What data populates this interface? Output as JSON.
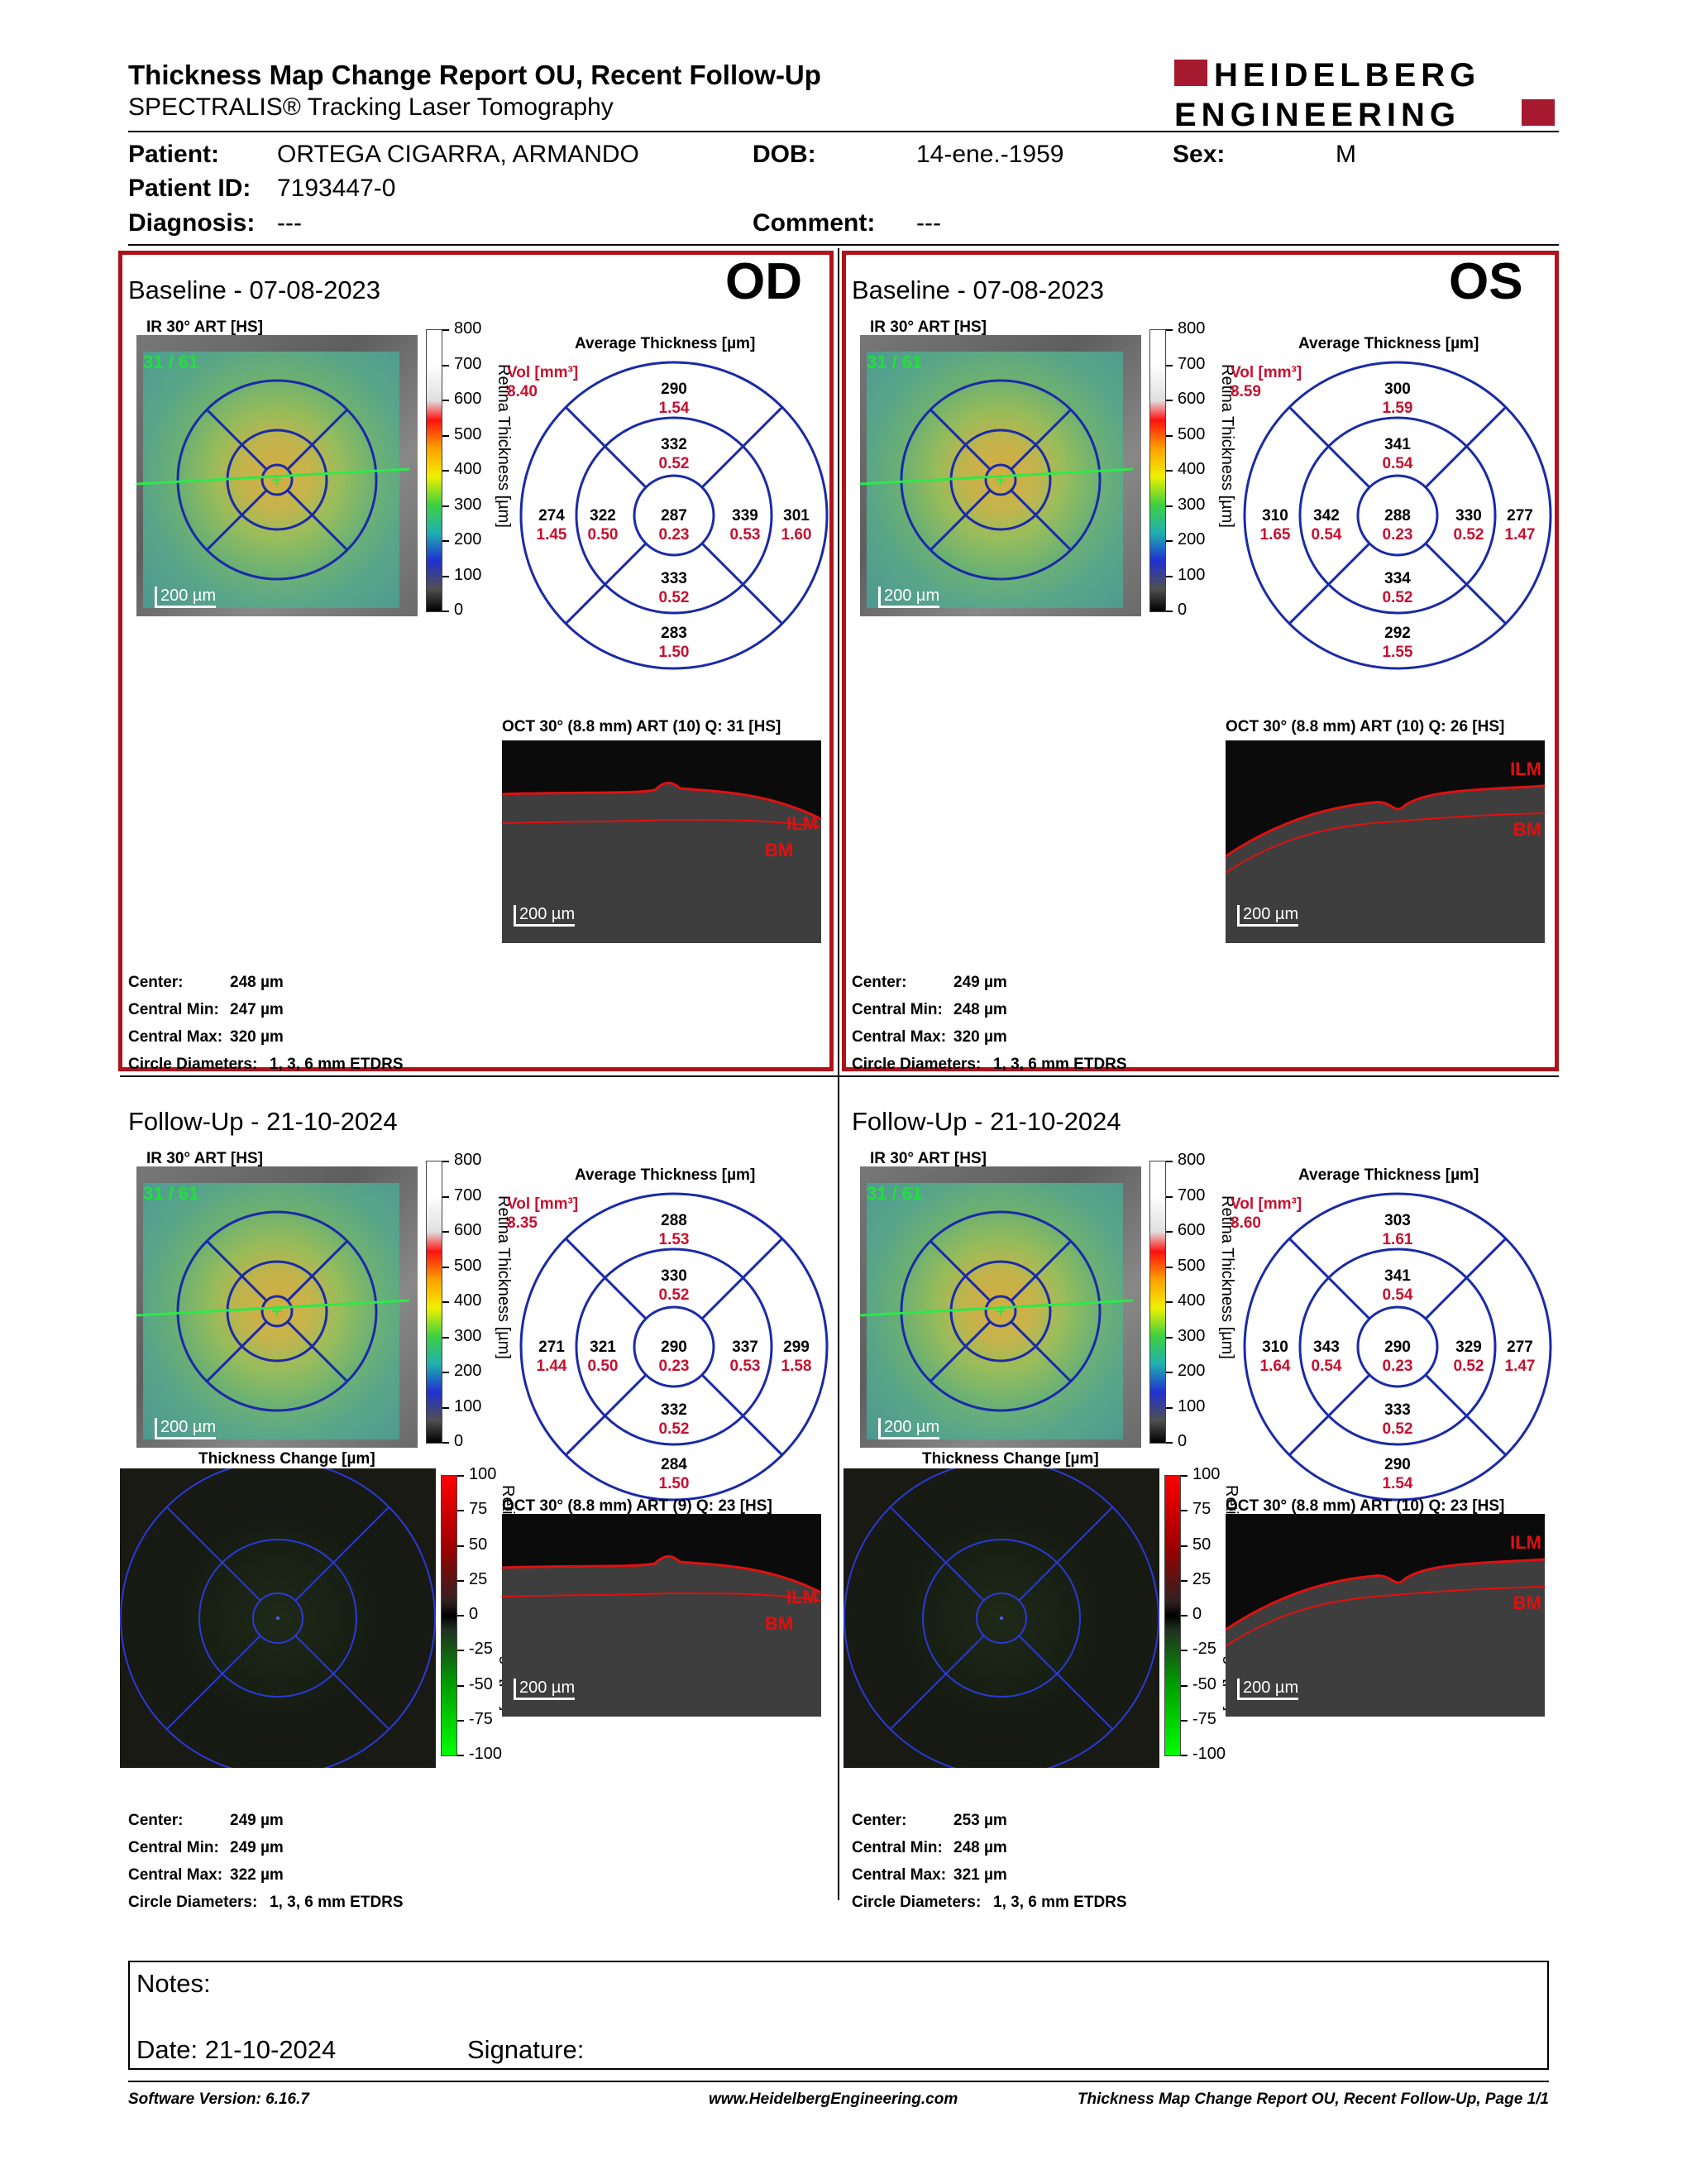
{
  "header": {
    "title": "Thickness Map Change Report OU, Recent Follow-Up",
    "subtitle": "SPECTRALIS® Tracking Laser Tomography",
    "logo_line1": "HEIDELBERG",
    "logo_line2": "ENGINEERING",
    "brand_color": "#a6192e"
  },
  "patient": {
    "patient_label": "Patient:",
    "patient_name": "ORTEGA CIGARRA, ARMANDO",
    "dob_label": "DOB:",
    "dob": "14-ene.-1959",
    "sex_label": "Sex:",
    "sex": "M",
    "id_label": "Patient ID:",
    "id": "7193447-0",
    "diagnosis_label": "Diagnosis:",
    "diagnosis": "---",
    "comment_label": "Comment:",
    "comment": "---"
  },
  "panels": {
    "od_base": {
      "title": "Baseline - 07-08-2023",
      "eye": "OD",
      "ir_label": "IR 30° ART [HS]",
      "ir_overlay": "31 / 61",
      "scale_bar": "200 µm",
      "avg_title": "Average Thickness [µm]",
      "vol_label": "Vol [mm³]",
      "vol": "8.40",
      "sectors": {
        "outer_sup": [
          "290",
          "1.54"
        ],
        "inner_sup": [
          "332",
          "0.52"
        ],
        "outer_temp": [
          "274",
          "1.45"
        ],
        "inner_temp": [
          "322",
          "0.50"
        ],
        "center": [
          "287",
          "0.23"
        ],
        "inner_nas": [
          "339",
          "0.53"
        ],
        "outer_nas": [
          "301",
          "1.60"
        ],
        "inner_inf": [
          "333",
          "0.52"
        ],
        "outer_inf": [
          "283",
          "1.50"
        ]
      },
      "oct_label": "OCT 30° (8.8 mm) ART (10) Q: 31 [HS]",
      "oct_ilm": "ILM",
      "oct_bm": "BM",
      "oct_scale": "200 µm",
      "stats": [
        [
          "Center:",
          "248 µm"
        ],
        [
          "Central Min:",
          "247 µm"
        ],
        [
          "Central Max:",
          "320 µm"
        ],
        [
          "Circle Diameters:",
          "1, 3, 6 mm ETDRS"
        ]
      ]
    },
    "os_base": {
      "title": "Baseline - 07-08-2023",
      "eye": "OS",
      "ir_label": "IR 30° ART [HS]",
      "ir_overlay": "31 / 61",
      "scale_bar": "200 µm",
      "avg_title": "Average Thickness [µm]",
      "vol_label": "Vol [mm³]",
      "vol": "8.59",
      "sectors": {
        "outer_sup": [
          "300",
          "1.59"
        ],
        "inner_sup": [
          "341",
          "0.54"
        ],
        "outer_temp": [
          "310",
          "1.65"
        ],
        "inner_temp": [
          "342",
          "0.54"
        ],
        "center": [
          "288",
          "0.23"
        ],
        "inner_nas": [
          "330",
          "0.52"
        ],
        "outer_nas": [
          "277",
          "1.47"
        ],
        "inner_inf": [
          "334",
          "0.52"
        ],
        "outer_inf": [
          "292",
          "1.55"
        ]
      },
      "oct_label": "OCT 30° (8.8 mm) ART (10) Q: 26 [HS]",
      "oct_ilm": "ILM",
      "oct_bm": "BM",
      "oct_scale": "200 µm",
      "stats": [
        [
          "Center:",
          "249 µm"
        ],
        [
          "Central Min:",
          "248 µm"
        ],
        [
          "Central Max:",
          "320 µm"
        ],
        [
          "Circle Diameters:",
          "1, 3, 6 mm ETDRS"
        ]
      ]
    },
    "od_follow": {
      "title": "Follow-Up - 21-10-2024",
      "ir_label": "IR 30° ART [HS]",
      "ir_overlay": "31 / 61",
      "scale_bar": "200 µm",
      "avg_title": "Average Thickness [µm]",
      "vol_label": "Vol [mm³]",
      "vol": "8.35",
      "sectors": {
        "outer_sup": [
          "288",
          "1.53"
        ],
        "inner_sup": [
          "330",
          "0.52"
        ],
        "outer_temp": [
          "271",
          "1.44"
        ],
        "inner_temp": [
          "321",
          "0.50"
        ],
        "center": [
          "290",
          "0.23"
        ],
        "inner_nas": [
          "337",
          "0.53"
        ],
        "outer_nas": [
          "299",
          "1.58"
        ],
        "inner_inf": [
          "332",
          "0.52"
        ],
        "outer_inf": [
          "284",
          "1.50"
        ]
      },
      "change_title": "Thickness Change [µm]",
      "oct_label": "OCT 30° (8.8 mm) ART (9) Q: 23 [HS]",
      "oct_ilm": "ILM",
      "oct_bm": "BM",
      "oct_scale": "200 µm",
      "stats": [
        [
          "Center:",
          "249 µm"
        ],
        [
          "Central Min:",
          "249 µm"
        ],
        [
          "Central Max:",
          "322 µm"
        ],
        [
          "Circle Diameters:",
          "1, 3, 6 mm ETDRS"
        ]
      ]
    },
    "os_follow": {
      "title": "Follow-Up - 21-10-2024",
      "ir_label": "IR 30° ART [HS]",
      "ir_overlay": "31 / 61",
      "scale_bar": "200 µm",
      "avg_title": "Average Thickness [µm]",
      "vol_label": "Vol [mm³]",
      "vol": "8.60",
      "sectors": {
        "outer_sup": [
          "303",
          "1.61"
        ],
        "inner_sup": [
          "341",
          "0.54"
        ],
        "outer_temp": [
          "310",
          "1.64"
        ],
        "inner_temp": [
          "343",
          "0.54"
        ],
        "center": [
          "290",
          "0.23"
        ],
        "inner_nas": [
          "329",
          "0.52"
        ],
        "outer_nas": [
          "277",
          "1.47"
        ],
        "inner_inf": [
          "333",
          "0.52"
        ],
        "outer_inf": [
          "290",
          "1.54"
        ]
      },
      "change_title": "Thickness Change [µm]",
      "oct_label": "OCT 30° (8.8 mm) ART (10) Q: 23 [HS]",
      "oct_ilm": "ILM",
      "oct_bm": "BM",
      "oct_scale": "200 µm",
      "stats": [
        [
          "Center:",
          "253 µm"
        ],
        [
          "Central Min:",
          "248 µm"
        ],
        [
          "Central Max:",
          "321 µm"
        ],
        [
          "Circle Diameters:",
          "1, 3, 6 mm ETDRS"
        ]
      ]
    }
  },
  "thickness_scale": {
    "label": "Retina Thickness [µm]",
    "ticks": [
      "800",
      "700",
      "600",
      "500",
      "400",
      "300",
      "200",
      "100",
      "0"
    ]
  },
  "change_scale": {
    "label": "Retina Thickness Change [µm]",
    "ticks": [
      "100",
      "75",
      "50",
      "25",
      "0",
      "-25",
      "-50",
      "-75",
      "-100"
    ]
  },
  "notes": {
    "notes_label": "Notes:",
    "date_label": "Date: 21-10-2024",
    "signature_label": "Signature:"
  },
  "footer": {
    "software": "Software Version: 6.16.7",
    "website": "www.HeidelbergEngineering.com",
    "page": "Thickness Map Change Report OU, Recent Follow-Up, Page 1/1"
  }
}
